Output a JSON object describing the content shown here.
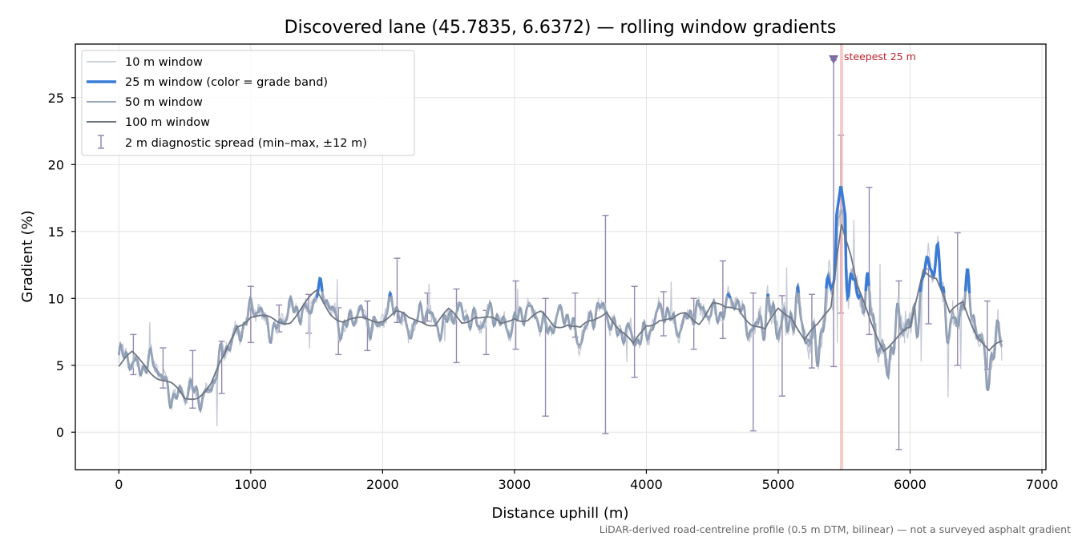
{
  "chart_data": {
    "type": "line",
    "title": "Discovered lane (45.7835, 6.6372) — rolling window gradients",
    "xlabel": "Distance uphill (m)",
    "ylabel": "Gradient (%)",
    "xlim": [
      -330,
      7030
    ],
    "ylim": [
      -2.8,
      29.0
    ],
    "xticks": [
      0,
      1000,
      2000,
      3000,
      4000,
      5000,
      6000,
      7000
    ],
    "yticks": [
      0,
      5,
      10,
      15,
      20,
      25
    ],
    "grid": true,
    "legend_position": "top-left",
    "footnote": "LiDAR-derived road-centreline profile (0.5 m DTM, bilinear) — not a surveyed asphalt gradient",
    "annotation": {
      "text": "steepest 25 m",
      "x": 5480,
      "marker_y": 27.8,
      "color": "#c0202a"
    },
    "colors": {
      "w10": "#c5cbd6",
      "w25_band": "#3a7bd5",
      "w25_base": "#8b9bb1",
      "w50": "#9aa6bb",
      "w100": "#6e7583",
      "diag": "#9488b0",
      "steep_marker": "#7b6ea3",
      "steep_band": "#f3b5b5"
    },
    "series": [
      {
        "name": "10 m window",
        "key": "w10"
      },
      {
        "name": "25 m window (color = grade band)",
        "key": "w25"
      },
      {
        "name": "50 m window",
        "key": "w50"
      },
      {
        "name": "100 m window",
        "key": "w100"
      },
      {
        "name": "2 m diagnostic spread (min–max, ±12 m)",
        "key": "diag"
      }
    ],
    "w100_profile": {
      "x": [
        0,
        100,
        200,
        300,
        400,
        500,
        600,
        700,
        800,
        900,
        1000,
        1100,
        1200,
        1300,
        1400,
        1500,
        1600,
        1700,
        1800,
        1900,
        2000,
        2100,
        2200,
        2300,
        2400,
        2500,
        2600,
        2700,
        2800,
        2900,
        3000,
        3100,
        3200,
        3300,
        3400,
        3500,
        3600,
        3700,
        3800,
        3900,
        4000,
        4100,
        4200,
        4300,
        4400,
        4500,
        4600,
        4700,
        4800,
        4900,
        5000,
        5100,
        5200,
        5300,
        5400,
        5450,
        5480,
        5550,
        5600,
        5700,
        5800,
        5900,
        6000,
        6100,
        6200,
        6300,
        6400,
        6500,
        6600,
        6700
      ],
      "y": [
        4.9,
        5.7,
        5.1,
        4.2,
        3.4,
        2.4,
        2.9,
        3.6,
        5.5,
        8.1,
        8.8,
        8.4,
        8.2,
        8.5,
        9.4,
        10.3,
        9.1,
        8.4,
        8.2,
        8.4,
        8.6,
        8.9,
        8.3,
        8.5,
        8.1,
        8.9,
        8.2,
        8.9,
        8.4,
        7.9,
        8.8,
        8.4,
        8.7,
        8.0,
        8.3,
        7.6,
        8.2,
        9.3,
        7.6,
        6.3,
        8.1,
        8.6,
        8.2,
        8.8,
        8.4,
        9.6,
        9.0,
        9.4,
        8.2,
        7.4,
        9.2,
        8.9,
        6.8,
        7.8,
        9.6,
        13.8,
        15.8,
        13.1,
        10.6,
        8.3,
        6.4,
        6.9,
        7.6,
        12.4,
        11.6,
        8.6,
        9.8,
        7.6,
        5.9,
        6.6
      ]
    },
    "diagnostic_spread": [
      {
        "x": 110,
        "min": 4.3,
        "max": 7.3
      },
      {
        "x": 335,
        "min": 3.3,
        "max": 6.3
      },
      {
        "x": 560,
        "min": 1.8,
        "max": 6.1
      },
      {
        "x": 780,
        "min": 2.9,
        "max": 6.8
      },
      {
        "x": 1000,
        "min": 6.7,
        "max": 10.9
      },
      {
        "x": 1215,
        "min": 7.5,
        "max": 9.5
      },
      {
        "x": 1440,
        "min": 7.4,
        "max": 10.3
      },
      {
        "x": 1665,
        "min": 5.8,
        "max": 9.3
      },
      {
        "x": 1885,
        "min": 6.1,
        "max": 9.8
      },
      {
        "x": 2110,
        "min": 8.2,
        "max": 13.0
      },
      {
        "x": 2340,
        "min": 8.3,
        "max": 10.4
      },
      {
        "x": 2560,
        "min": 5.2,
        "max": 10.7
      },
      {
        "x": 2785,
        "min": 5.8,
        "max": 9.1
      },
      {
        "x": 3010,
        "min": 6.2,
        "max": 11.3
      },
      {
        "x": 3235,
        "min": 1.2,
        "max": 10.0
      },
      {
        "x": 3460,
        "min": 7.1,
        "max": 10.4
      },
      {
        "x": 3690,
        "min": -0.1,
        "max": 16.2
      },
      {
        "x": 3910,
        "min": 4.1,
        "max": 10.9
      },
      {
        "x": 4130,
        "min": 7.2,
        "max": 10.5
      },
      {
        "x": 4360,
        "min": 6.2,
        "max": 10.0
      },
      {
        "x": 4580,
        "min": 7.0,
        "max": 12.8
      },
      {
        "x": 4810,
        "min": 0.1,
        "max": 10.4
      },
      {
        "x": 5030,
        "min": 2.7,
        "max": 10.2
      },
      {
        "x": 5255,
        "min": 4.8,
        "max": 10.3
      },
      {
        "x": 5420,
        "min": 4.9,
        "max": 27.8
      },
      {
        "x": 5475,
        "min": 8.9,
        "max": 22.2
      },
      {
        "x": 5690,
        "min": 7.3,
        "max": 18.3
      },
      {
        "x": 5915,
        "min": -1.3,
        "max": 11.3
      },
      {
        "x": 6140,
        "min": 8.1,
        "max": 12.2
      },
      {
        "x": 6360,
        "min": 5.0,
        "max": 14.9
      },
      {
        "x": 6585,
        "min": 4.7,
        "max": 9.8
      }
    ]
  }
}
